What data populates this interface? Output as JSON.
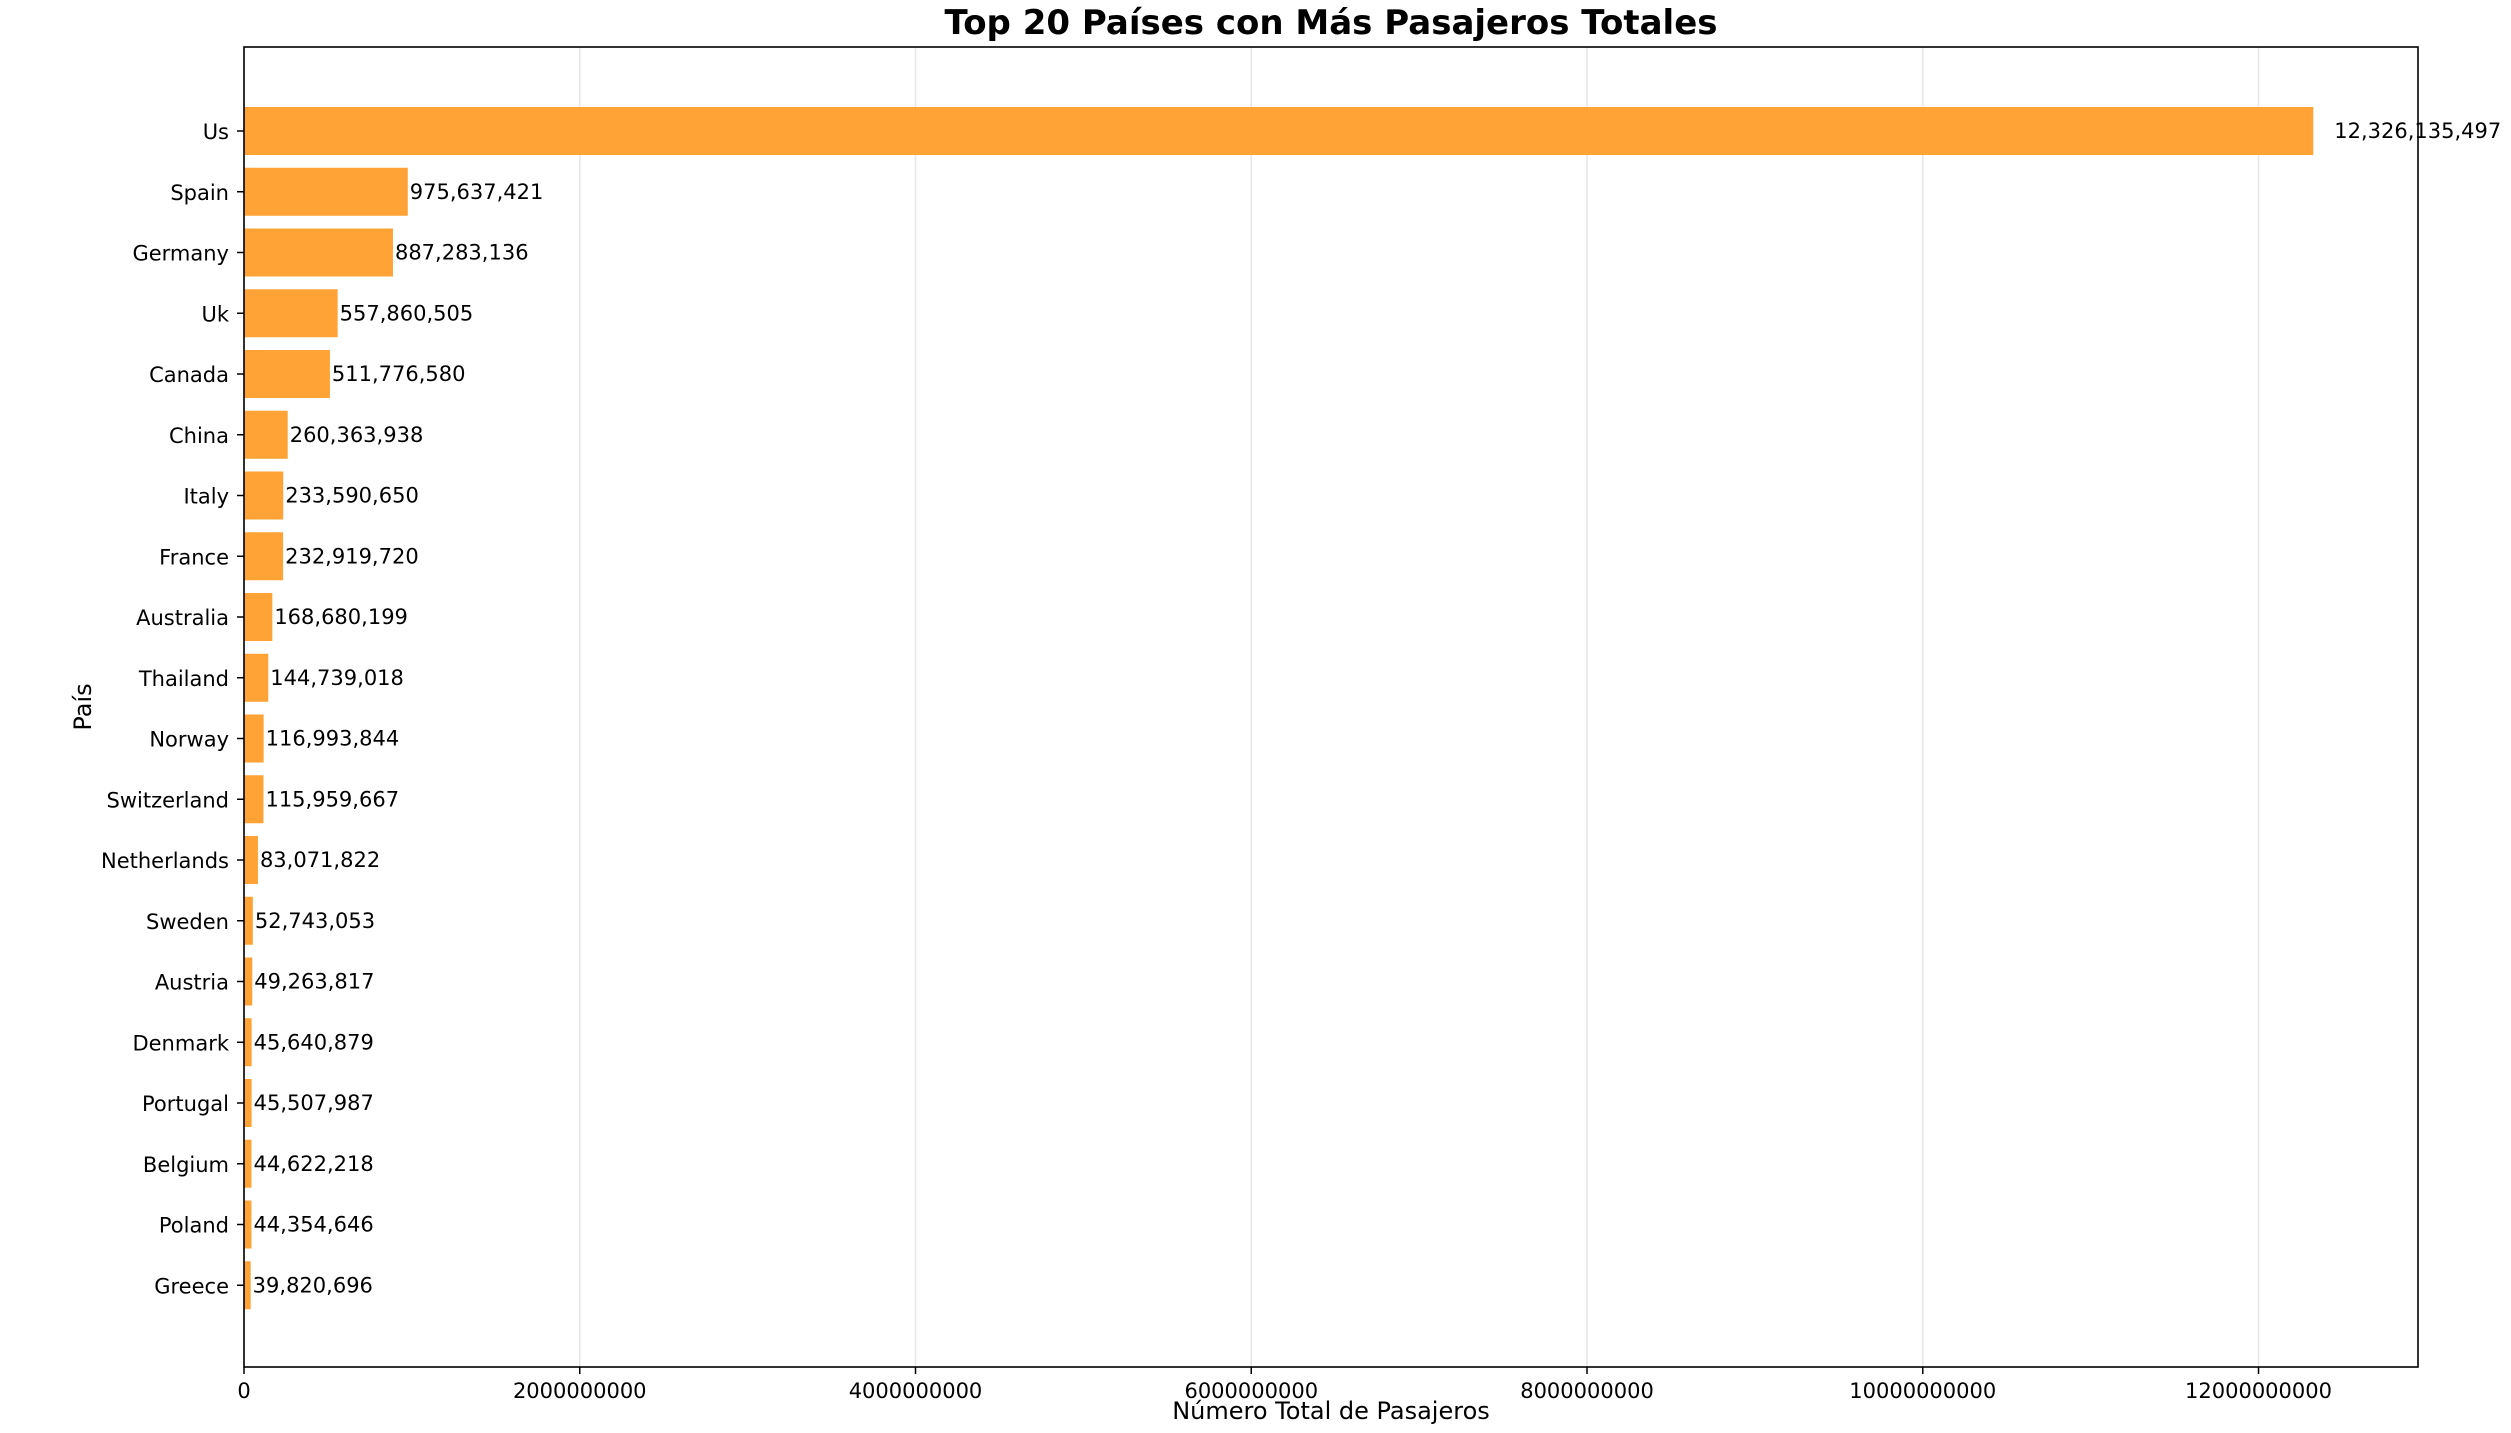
{
  "chart_data": {
    "type": "bar",
    "orientation": "horizontal",
    "title": "Top 20 Países con Más Pasajeros Totales",
    "xlabel": "Número Total de Pasajeros",
    "ylabel": "País",
    "xlim": [
      0,
      12950000000
    ],
    "xticks": [
      0,
      2000000000,
      4000000000,
      6000000000,
      8000000000,
      10000000000,
      12000000000
    ],
    "xtick_labels": [
      "0",
      "2000000000",
      "4000000000",
      "6000000000",
      "8000000000",
      "10000000000",
      "12000000000"
    ],
    "grid": "x-axis vertical lines",
    "bar_color": "#ffa336",
    "categories": [
      "Us",
      "Spain",
      "Germany",
      "Uk",
      "Canada",
      "China",
      "Italy",
      "France",
      "Australia",
      "Thailand",
      "Norway",
      "Switzerland",
      "Netherlands",
      "Sweden",
      "Austria",
      "Denmark",
      "Portugal",
      "Belgium",
      "Poland",
      "Greece"
    ],
    "values": [
      12326135497,
      975637421,
      887283136,
      557860505,
      511776580,
      260363938,
      233590650,
      232919720,
      168680199,
      144739018,
      116993844,
      115959667,
      83071822,
      52743053,
      49263817,
      45640879,
      45507987,
      44622218,
      44354646,
      39820696
    ],
    "value_labels": [
      "12,326,135,497",
      "975,637,421",
      "887,283,136",
      "557,860,505",
      "511,776,580",
      "260,363,938",
      "233,590,650",
      "232,919,720",
      "168,680,199",
      "144,739,018",
      "116,993,844",
      "115,959,667",
      "83,071,822",
      "52,743,053",
      "49,263,817",
      "45,640,879",
      "45,507,987",
      "44,622,218",
      "44,354,646",
      "39,820,696"
    ]
  }
}
